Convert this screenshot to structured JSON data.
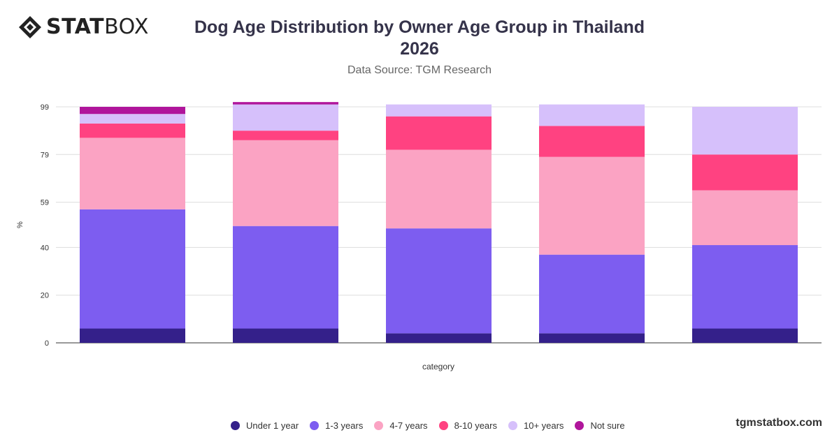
{
  "logo": {
    "text_bold": "STAT",
    "text_regular": "BOX",
    "name": "statbox-logo"
  },
  "chart_data": {
    "type": "bar",
    "stacked": true,
    "title": "Dog Age Distribution by Owner Age Group in Thailand 2026",
    "title_lines": [
      "Dog Age Distribution by Owner Age Group in Thailand",
      "2026"
    ],
    "subtitle": "Data Source: TGM Research",
    "xlabel": "category",
    "ylabel": "%",
    "ylim": [
      0,
      100
    ],
    "yticks": [
      0,
      20,
      40,
      59,
      79,
      99
    ],
    "grid": true,
    "legend_position": "bottom",
    "categories": [
      "",
      "",
      "",
      "",
      ""
    ],
    "series": [
      {
        "name": "Under 1 year",
        "color": "#34208a",
        "values": [
          6,
          6,
          4,
          4,
          6
        ]
      },
      {
        "name": "1-3 years",
        "color": "#7d5df0",
        "values": [
          50,
          43,
          44,
          33,
          35
        ]
      },
      {
        "name": "4-7 years",
        "color": "#fba3c3",
        "values": [
          30,
          36,
          33,
          41,
          23
        ]
      },
      {
        "name": "8-10 years",
        "color": "#ff4281",
        "values": [
          6,
          4,
          14,
          13,
          15
        ]
      },
      {
        "name": "10+ years",
        "color": "#d6c0fb",
        "values": [
          4,
          11,
          5,
          9,
          20
        ]
      },
      {
        "name": "Not sure",
        "color": "#b0159b",
        "values": [
          3,
          1,
          0,
          0,
          0
        ]
      }
    ]
  },
  "watermark": "tgmstatbox.com"
}
